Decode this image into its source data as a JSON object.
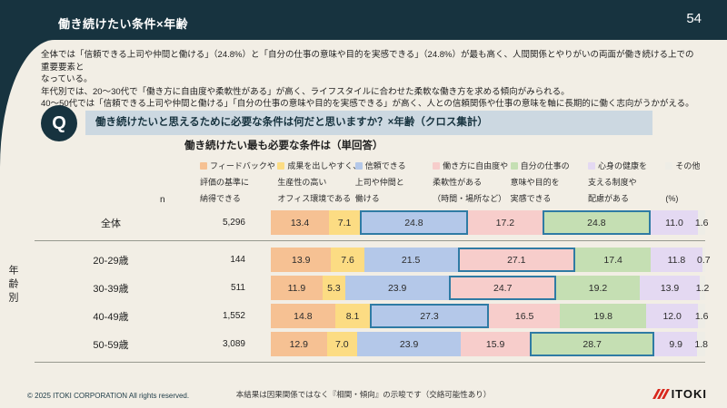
{
  "slide": {
    "title": "働き続けたい条件×年齢",
    "page_number": "54",
    "q_label": "Q",
    "question": "働き続けたいと思えるために必要な条件は何だと思いますか？×年齢（クロス集計）",
    "summary_lines": [
      "全体では「信頼できる上司や仲間と働ける」（24.8%）と「自分の仕事の意味や目的を実感できる」（24.8%）が最も高く、人間関係とやりがいの両面が働き続ける上での重要要素と",
      "なっている。",
      "年代別では、20〜30代で「働き方に自由度や柔軟性がある」が高く、ライフスタイルに合わせた柔軟な働き方を求める傾向がみられる。",
      "40〜50代では「信頼できる上司や仲間と働ける」「自分の仕事の意味や目的を実感できる」が高く、人との信頼関係や仕事の意味を軸に長期的に働く志向がうかがえる。"
    ]
  },
  "chart_data": {
    "type": "bar",
    "orientation": "horizontal-stacked",
    "title": "働き続けたい最も必要な条件は（単回答）",
    "n_label": "n",
    "unit_label": "(%)",
    "group_axis_label": "年齢別",
    "highlight_border_color": "#2f7ba4",
    "categories": [
      "全体",
      "20-29歳",
      "30-39歳",
      "40-49歳",
      "50-59歳"
    ],
    "n_values": [
      "5,296",
      "144",
      "511",
      "1,552",
      "3,089"
    ],
    "series": [
      {
        "name": "フィードバックや評価の基準に納得できる",
        "label_lines": [
          "フィードバックや",
          "評価の基準に",
          "納得できる"
        ],
        "color": "#f6c193",
        "values": [
          13.4,
          13.9,
          11.9,
          14.8,
          12.9
        ]
      },
      {
        "name": "成果を出しやすく、生産性の高いオフィス環境である",
        "label_lines": [
          "成果を出しやすく、",
          "生産性の高い",
          "オフィス環境である"
        ],
        "color": "#fcdc83",
        "values": [
          7.1,
          7.6,
          5.3,
          8.1,
          7.0
        ]
      },
      {
        "name": "信頼できる上司や仲間と働ける",
        "label_lines": [
          "信頼できる",
          "上司や仲間と",
          "働ける"
        ],
        "color": "#b4c8e9",
        "values": [
          24.8,
          21.5,
          23.9,
          27.3,
          23.9
        ]
      },
      {
        "name": "働き方に自由度や柔軟性がある（時間・場所など）",
        "label_lines": [
          "働き方に自由度や",
          "柔軟性がある",
          "（時間・場所など）"
        ],
        "color": "#f7cdcb",
        "values": [
          17.2,
          27.1,
          24.7,
          16.5,
          15.9
        ]
      },
      {
        "name": "自分の仕事の意味や目的を実感できる",
        "label_lines": [
          "自分の仕事の",
          "意味や目的を",
          "実感できる"
        ],
        "color": "#c5dfb3",
        "values": [
          24.8,
          17.4,
          19.2,
          19.8,
          28.7
        ]
      },
      {
        "name": "心身の健康を支える制度や配慮がある",
        "label_lines": [
          "心身の健康を",
          "支える制度や",
          "配慮がある"
        ],
        "color": "#e4d9f2",
        "values": [
          11.0,
          11.8,
          13.9,
          12.0,
          9.9
        ]
      },
      {
        "name": "その他",
        "label_lines": [
          "その他"
        ],
        "color": "#eeede6",
        "values": [
          1.6,
          0.7,
          1.2,
          1.6,
          1.8
        ]
      }
    ],
    "highlights": [
      [
        2,
        4
      ],
      [
        3
      ],
      [
        3
      ],
      [
        2
      ],
      [
        4
      ]
    ]
  },
  "footer": {
    "copyright": "© 2025 ITOKI CORPORATION All rights reserved.",
    "note": "本結果は因果関係ではなく『相関・傾向』の示唆です（交絡可能性あり）",
    "logo_text": "ITOKI",
    "logo_accent_color": "#d8261c"
  }
}
